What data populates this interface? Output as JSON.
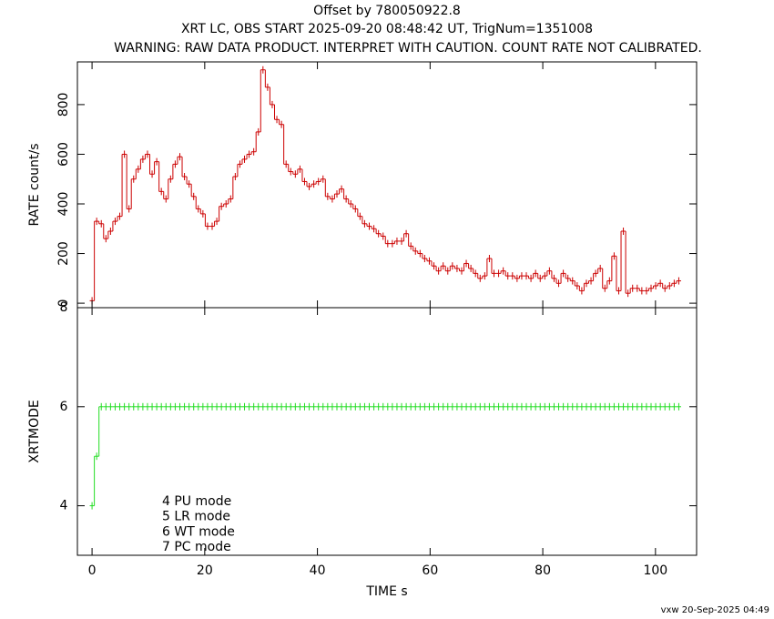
{
  "chart_data": [
    {
      "type": "step",
      "title": "Offset by 780050922.8",
      "subtitle": "XRT LC, OBS START 2025-09-20 08:48:42 UT, TrigNum=1351008",
      "note": "WARNING: RAW DATA PRODUCT. INTERPRET WITH CAUTION. COUNT RATE NOT CALIBRATED.",
      "ylabel": "RATE  count/s",
      "color": "#cc0000",
      "x": [
        0,
        0.82,
        1.64,
        2.46,
        3.28,
        4.1,
        4.92,
        5.74,
        6.56,
        7.38,
        8.2,
        9.02,
        9.84,
        10.66,
        11.48,
        12.3,
        13.12,
        13.94,
        14.76,
        15.58,
        16.4,
        17.22,
        18.04,
        18.86,
        19.68,
        20.5,
        21.32,
        22.14,
        22.96,
        23.78,
        24.6,
        25.42,
        26.24,
        27.06,
        27.88,
        28.7,
        29.52,
        30.34,
        31.16,
        31.98,
        32.8,
        33.62,
        34.44,
        35.26,
        36.08,
        36.9,
        37.72,
        38.54,
        39.36,
        40.18,
        41,
        41.82,
        42.64,
        43.46,
        44.28,
        45.1,
        45.92,
        46.74,
        47.56,
        48.38,
        49.2,
        50.02,
        50.84,
        51.66,
        52.48,
        53.3,
        54.12,
        54.94,
        55.76,
        56.58,
        57.4,
        58.22,
        59.04,
        59.86,
        60.68,
        61.5,
        62.32,
        63.14,
        63.96,
        64.78,
        65.6,
        66.42,
        67.24,
        68.06,
        68.88,
        69.7,
        70.52,
        71.34,
        72.16,
        72.98,
        73.8,
        74.62,
        75.44,
        76.26,
        77.08,
        77.9,
        78.72,
        79.54,
        80.36,
        81.18,
        82,
        82.82,
        83.64,
        84.46,
        85.28,
        86.1,
        86.92,
        87.74,
        88.56,
        89.38,
        90.2,
        91.02,
        91.84,
        92.66,
        93.48,
        94.3,
        95.12,
        95.94,
        96.76,
        97.58,
        98.4,
        99.22,
        100.04,
        100.86,
        101.68,
        102.5,
        103.32,
        104.14
      ],
      "values": [
        10,
        330,
        320,
        260,
        290,
        330,
        350,
        600,
        380,
        500,
        540,
        580,
        600,
        520,
        570,
        450,
        420,
        500,
        560,
        590,
        510,
        480,
        430,
        380,
        360,
        310,
        310,
        330,
        390,
        400,
        420,
        510,
        560,
        580,
        600,
        610,
        690,
        940,
        870,
        800,
        740,
        720,
        560,
        530,
        520,
        540,
        490,
        470,
        480,
        490,
        500,
        430,
        420,
        440,
        460,
        420,
        400,
        380,
        350,
        320,
        310,
        300,
        280,
        270,
        240,
        240,
        250,
        250,
        280,
        230,
        210,
        200,
        180,
        170,
        150,
        130,
        150,
        130,
        150,
        140,
        130,
        160,
        140,
        120,
        100,
        110,
        180,
        120,
        120,
        130,
        110,
        110,
        100,
        110,
        110,
        100,
        120,
        100,
        110,
        130,
        100,
        80,
        120,
        100,
        90,
        70,
        50,
        80,
        90,
        120,
        140,
        60,
        90,
        190,
        50,
        290,
        40,
        60,
        60,
        50,
        50,
        60,
        70,
        80,
        60,
        70,
        80,
        90
      ],
      "xlim": [
        -2.6,
        107.3
      ],
      "xticks": [
        0,
        20,
        40,
        60,
        80,
        100
      ],
      "ylim": [
        -18,
        972
      ],
      "yticks": [
        0,
        200,
        400,
        600,
        800
      ]
    },
    {
      "type": "step",
      "ylabel": "XRTMODE",
      "xlabel": "TIME  s",
      "color": "#22dd22",
      "x": [
        0,
        0.82,
        1.64,
        2.46,
        3.28,
        4.1,
        4.92,
        5.74,
        6.56,
        7.38,
        8.2,
        9.02,
        9.84,
        10.66,
        11.48,
        12.3,
        13.12,
        13.94,
        14.76,
        15.58,
        16.4,
        17.22,
        18.04,
        18.86,
        19.68,
        20.5,
        21.32,
        22.14,
        22.96,
        23.78,
        24.6,
        25.42,
        26.24,
        27.06,
        27.88,
        28.7,
        29.52,
        30.34,
        31.16,
        31.98,
        32.8,
        33.62,
        34.44,
        35.26,
        36.08,
        36.9,
        37.72,
        38.54,
        39.36,
        40.18,
        41,
        41.82,
        42.64,
        43.46,
        44.28,
        45.1,
        45.92,
        46.74,
        47.56,
        48.38,
        49.2,
        50.02,
        50.84,
        51.66,
        52.48,
        53.3,
        54.12,
        54.94,
        55.76,
        56.58,
        57.4,
        58.22,
        59.04,
        59.86,
        60.68,
        61.5,
        62.32,
        63.14,
        63.96,
        64.78,
        65.6,
        66.42,
        67.24,
        68.06,
        68.88,
        69.7,
        70.52,
        71.34,
        72.16,
        72.98,
        73.8,
        74.62,
        75.44,
        76.26,
        77.08,
        77.9,
        78.72,
        79.54,
        80.36,
        81.18,
        82,
        82.82,
        83.64,
        84.46,
        85.28,
        86.1,
        86.92,
        87.74,
        88.56,
        89.38,
        90.2,
        91.02,
        91.84,
        92.66,
        93.48,
        94.3,
        95.12,
        95.94,
        96.76,
        97.58,
        98.4,
        99.22,
        100.04,
        100.86,
        101.68,
        102.5,
        103.32,
        104.14
      ],
      "values": [
        4,
        5,
        6,
        6,
        6,
        6,
        6,
        6,
        6,
        6,
        6,
        6,
        6,
        6,
        6,
        6,
        6,
        6,
        6,
        6,
        6,
        6,
        6,
        6,
        6,
        6,
        6,
        6,
        6,
        6,
        6,
        6,
        6,
        6,
        6,
        6,
        6,
        6,
        6,
        6,
        6,
        6,
        6,
        6,
        6,
        6,
        6,
        6,
        6,
        6,
        6,
        6,
        6,
        6,
        6,
        6,
        6,
        6,
        6,
        6,
        6,
        6,
        6,
        6,
        6,
        6,
        6,
        6,
        6,
        6,
        6,
        6,
        6,
        6,
        6,
        6,
        6,
        6,
        6,
        6,
        6,
        6,
        6,
        6,
        6,
        6,
        6,
        6,
        6,
        6,
        6,
        6,
        6,
        6,
        6,
        6,
        6,
        6,
        6,
        6,
        6,
        6,
        6,
        6,
        6,
        6,
        6,
        6,
        6,
        6,
        6,
        6,
        6,
        6,
        6,
        6,
        6,
        6,
        6,
        6,
        6,
        6,
        6,
        6,
        6,
        6,
        6,
        6
      ],
      "xlim": [
        -2.6,
        107.3
      ],
      "xticks": [
        0,
        20,
        40,
        60,
        80,
        100
      ],
      "ylim": [
        3,
        8
      ],
      "yticks": [
        4,
        6,
        8
      ],
      "annotations": [
        "4 PU mode",
        "5 LR mode",
        "6 WT mode",
        "7 PC mode"
      ]
    }
  ],
  "footer": "vxw 20-Sep-2025 04:49"
}
